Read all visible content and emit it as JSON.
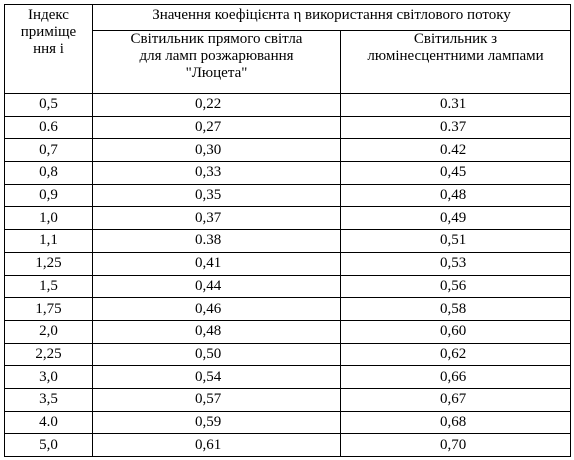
{
  "table": {
    "header": {
      "index": "Індекс\nприміще\nння і",
      "group": "Значення коефіцієнта η використання світлового потоку",
      "col1": "Світильник прямого світла\nдля ламп розжарювання\n\"Люцета\"",
      "col2": "Світильник з\nлюмінесцентними лампами"
    },
    "rows": [
      [
        "0,5",
        "0,22",
        "0.31"
      ],
      [
        "0.6",
        "0,27",
        "0.37"
      ],
      [
        "0,7",
        "0,30",
        "0.42"
      ],
      [
        "0,8",
        "0,33",
        "0,45"
      ],
      [
        "0,9",
        "0,35",
        "0,48"
      ],
      [
        "1,0",
        "0,37",
        "0,49"
      ],
      [
        "1,1",
        "0.38",
        "0,51"
      ],
      [
        "1,25",
        "0,41",
        "0,53"
      ],
      [
        "1,5",
        "0,44",
        "0,56"
      ],
      [
        "1,75",
        "0,46",
        "0,58"
      ],
      [
        "2,0",
        "0,48",
        "0,60"
      ],
      [
        "2,25",
        "0,50",
        "0,62"
      ],
      [
        "3,0",
        "0,54",
        "0,66"
      ],
      [
        "3,5",
        "0,57",
        "0,67"
      ],
      [
        "4.0",
        "0,59",
        "0,68"
      ],
      [
        "5,0",
        "0,61",
        "0,70"
      ]
    ]
  }
}
